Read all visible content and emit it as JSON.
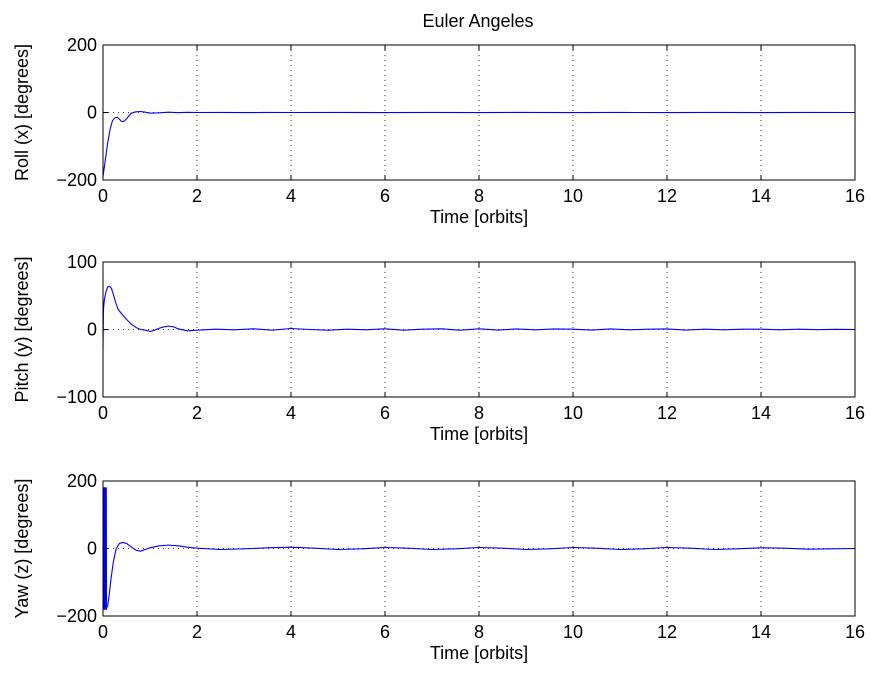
{
  "figure": {
    "title": "Euler Angeles"
  },
  "chart_data": [
    {
      "type": "line",
      "title": "Euler Angeles",
      "xlabel": "Time [orbits]",
      "ylabel": "Roll (x) [degrees]",
      "xlim": [
        0,
        16
      ],
      "ylim": [
        -200,
        200
      ],
      "xticks": [
        "0",
        "2",
        "4",
        "6",
        "8",
        "10",
        "12",
        "14",
        "16"
      ],
      "yticks": [
        "−200",
        "0",
        "200"
      ],
      "grid": true,
      "series_color": "#0000ff",
      "series": [
        {
          "x": [
            0,
            0.05,
            0.1,
            0.15,
            0.2,
            0.25,
            0.3,
            0.35,
            0.4,
            0.45,
            0.5,
            0.55,
            0.6,
            0.7,
            0.8,
            0.9,
            1.0,
            1.2,
            1.4,
            1.6,
            1.8,
            2.0,
            2.5,
            3.0,
            3.5,
            4.0,
            5,
            6,
            7,
            8,
            9,
            10,
            11,
            12,
            13,
            14,
            15,
            16
          ],
          "y": [
            -190,
            -140,
            -90,
            -50,
            -25,
            -16,
            -14,
            -20,
            -27,
            -26,
            -19,
            -10,
            -2,
            2,
            3,
            1,
            -2,
            -1,
            0.8,
            -0.5,
            0.5,
            0,
            0.3,
            -0.3,
            0.2,
            0,
            0.2,
            -0.2,
            0.2,
            -0.2,
            0.2,
            -0.1,
            0.1,
            -0.1,
            0.1,
            -0.1,
            0.1,
            0
          ]
        }
      ]
    },
    {
      "type": "line",
      "xlabel": "Time [orbits]",
      "ylabel": "Pitch (y) [degrees]",
      "xlim": [
        0,
        16
      ],
      "ylim": [
        -100,
        100
      ],
      "xticks": [
        "0",
        "2",
        "4",
        "6",
        "8",
        "10",
        "12",
        "14",
        "16"
      ],
      "yticks": [
        "−100",
        "0",
        "100"
      ],
      "grid": true,
      "series_color": "#0000ff",
      "series": [
        {
          "x": [
            0,
            0.01,
            0.03,
            0.06,
            0.1,
            0.14,
            0.18,
            0.22,
            0.27,
            0.32,
            0.4,
            0.5,
            0.6,
            0.7,
            0.8,
            0.9,
            1.0,
            1.1,
            1.2,
            1.3,
            1.4,
            1.5,
            1.6,
            1.8,
            2.0,
            2.4,
            2.8,
            3.2,
            3.6,
            4.0,
            4.4,
            4.8,
            5.2,
            5.6,
            6.0,
            6.4,
            6.8,
            7.2,
            7.6,
            8.0,
            8.4,
            8.8,
            9.2,
            9.6,
            10.0,
            10.4,
            10.8,
            11.2,
            11.6,
            12.0,
            12.4,
            12.8,
            13.2,
            13.6,
            14.0,
            14.4,
            14.8,
            15.2,
            15.6,
            16.0
          ],
          "y": [
            -30,
            30,
            45,
            55,
            63,
            64,
            61,
            52,
            40,
            30,
            23,
            15,
            8,
            3,
            0,
            -1,
            -3,
            -1,
            2,
            4,
            5,
            4,
            1,
            -2,
            -1,
            0.5,
            -0.5,
            1,
            -1,
            1.5,
            0,
            -1,
            0.5,
            -0.5,
            1,
            -1,
            0.5,
            1,
            -1,
            1,
            -0.8,
            0.8,
            -0.5,
            0.8,
            0.5,
            -0.8,
            0.8,
            -0.5,
            0.5,
            0.8,
            -0.8,
            0.5,
            -0.5,
            0.5,
            0.5,
            -0.5,
            0.5,
            -0.3,
            0.3,
            0
          ]
        }
      ]
    },
    {
      "type": "line",
      "xlabel": "Time [orbits]",
      "ylabel": "Yaw (z) [degrees]",
      "xlim": [
        0,
        16
      ],
      "ylim": [
        -200,
        200
      ],
      "xticks": [
        "0",
        "2",
        "4",
        "6",
        "8",
        "10",
        "12",
        "14",
        "16"
      ],
      "yticks": [
        "−200",
        "0",
        "200"
      ],
      "grid": true,
      "series_color": "#0000ff",
      "series": [
        {
          "x": [
            0,
            0.005,
            0.01,
            0.015,
            0.02,
            0.025,
            0.03,
            0.035,
            0.04,
            0.045,
            0.05,
            0.055,
            0.06,
            0.065,
            0.07,
            0.075,
            0.08,
            0.1,
            0.13,
            0.17,
            0.22,
            0.28,
            0.35,
            0.42,
            0.5,
            0.6,
            0.7,
            0.8,
            0.9,
            1.0,
            1.2,
            1.4,
            1.6,
            1.8,
            2.0,
            2.5,
            3.0,
            3.5,
            4.0,
            4.5,
            5.0,
            5.5,
            6.0,
            6.5,
            7.0,
            7.5,
            8.0,
            8.5,
            9.0,
            9.5,
            10.0,
            10.5,
            11.0,
            11.5,
            12.0,
            12.5,
            13.0,
            13.5,
            14.0,
            14.5,
            15.0,
            15.5,
            16.0
          ],
          "y": [
            180,
            -180,
            180,
            -180,
            180,
            -180,
            180,
            -180,
            180,
            -180,
            180,
            -180,
            180,
            -180,
            180,
            -180,
            -175,
            -170,
            -140,
            -90,
            -40,
            0,
            15,
            18,
            15,
            5,
            -5,
            -8,
            -3,
            2,
            8,
            10,
            8,
            4,
            1,
            -3,
            -1,
            2,
            4,
            1,
            -3,
            -1,
            3,
            1,
            -3,
            -1,
            3,
            1,
            -3,
            -1,
            3,
            1,
            -3,
            -1,
            3,
            1,
            -3,
            -1,
            2,
            1,
            -2,
            -1,
            0
          ]
        }
      ]
    }
  ]
}
